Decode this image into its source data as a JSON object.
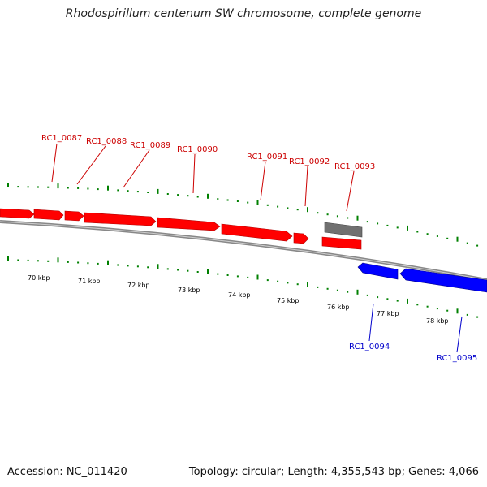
{
  "title": "Rhodospirillum centenum SW chromosome, complete genome",
  "footer": {
    "accession": "Accession: NC_011420",
    "summary": "Topology: circular; Length: 4,355,543 bp; Genes: 4,066"
  },
  "colors": {
    "forward_gene": "#ff0000",
    "reverse_gene": "#0000ff",
    "other_feature": "#666666",
    "tick": "#008000",
    "backbone": "#888888"
  },
  "tick_labels": [
    "70 kbp",
    "71 kbp",
    "72 kbp",
    "73 kbp",
    "74 kbp",
    "75 kbp",
    "76 kbp",
    "77 kbp",
    "78 kbp"
  ],
  "gene_labels": {
    "forward": [
      "RC1_0087",
      "RC1_0088",
      "RC1_0089",
      "RC1_0090",
      "RC1_0091",
      "RC1_0092",
      "RC1_0093"
    ],
    "reverse": [
      "RC1_0094",
      "RC1_0095"
    ]
  }
}
